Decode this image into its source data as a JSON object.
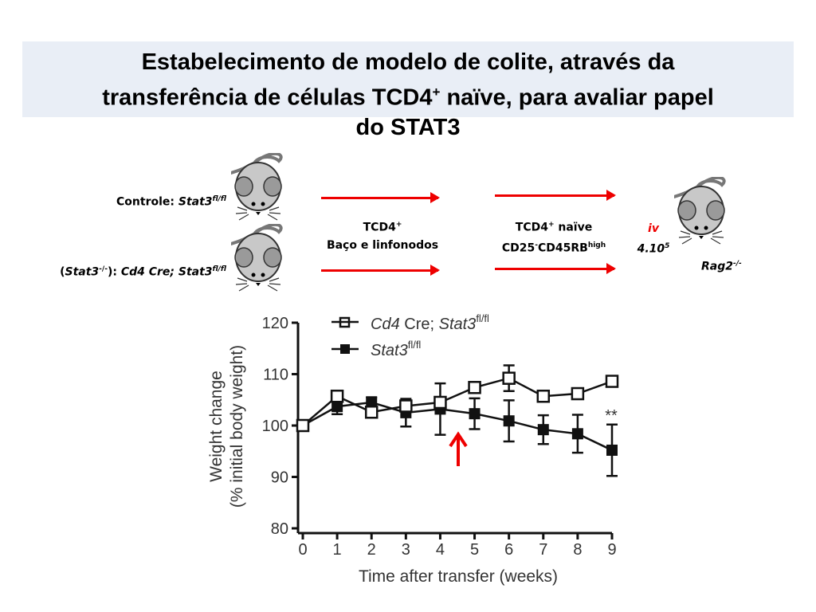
{
  "slide": {
    "title_line1": "Estabelecimento de modelo de colite, através da",
    "title_line2_a": "transferência de células TCD4",
    "title_line2_sup": "+",
    "title_line2_b": " naïve, para avaliar papel",
    "title_line3": "do STAT3"
  },
  "diagram": {
    "control_prefix": "Controle: ",
    "control_gene": "Stat3",
    "control_sup": "fl/fl",
    "ko_open": "(",
    "ko_gene": "Stat3",
    "ko_sup": "-/-",
    "ko_close": "): ",
    "ko_genotype": "Cd4 Cre; Stat3",
    "ko_genotype_sup": "fl/fl",
    "step1_line1": "TCD4",
    "step1_line1_sup": "+",
    "step1_line2": "Baço e linfonodos",
    "step2_line1": "TCD4",
    "step2_line1_sup": "+",
    "step2_line1_b": " naïve",
    "step2_line2_a": "CD25",
    "step2_line2_sup1": "-",
    "step2_line2_b": "CD45RB",
    "step2_line2_sup2": "high",
    "route": "iv",
    "dose": "4.10",
    "dose_sup": "5",
    "recipient": "Rag2",
    "recipient_sup": "-/-",
    "arrow_color": "#e00000"
  },
  "chart_data": {
    "type": "line",
    "xlabel": "Time after transfer (weeks)",
    "ylabel_line1": "Weight change",
    "ylabel_line2": "(% initial body weight)",
    "xlim": [
      0,
      9
    ],
    "ylim": [
      80,
      120
    ],
    "x": [
      0,
      1,
      2,
      3,
      4,
      5,
      6,
      7,
      8,
      9
    ],
    "xticks": [
      "0",
      "1",
      "2",
      "3",
      "4",
      "5",
      "6",
      "7",
      "8",
      "9"
    ],
    "yticks": [
      "80",
      "90",
      "100",
      "110",
      "120"
    ],
    "grid": false,
    "legend_position": "top-left",
    "series": [
      {
        "name": "Cd4 Cre; Stat3fl/fl",
        "legend_italic": "Cd4",
        "legend_plain": " Cre; ",
        "legend_italic2": "Stat3",
        "legend_sup": "fl/fl",
        "marker": "open-square",
        "values": [
          100,
          105.7,
          102.6,
          103.8,
          104.5,
          107.4,
          109.2,
          105.7,
          106.2,
          108.6
        ],
        "errors": [
          0,
          1,
          1,
          1,
          1,
          1,
          2.5,
          1,
          1,
          1
        ]
      },
      {
        "name": "Stat3fl/fl",
        "legend_italic": "Stat3",
        "legend_sup": "fl/fl",
        "marker": "filled-square",
        "values": [
          100,
          103.7,
          104.5,
          102.5,
          103.2,
          102.3,
          100.9,
          99.2,
          98.4,
          95.2
        ],
        "errors": [
          0,
          1.5,
          1,
          2.7,
          5,
          3,
          4,
          2.8,
          3.7,
          5
        ]
      }
    ],
    "annotations": [
      {
        "text": "**",
        "x": 9
      },
      {
        "text": "red-arrow",
        "x": 4.5
      }
    ]
  }
}
